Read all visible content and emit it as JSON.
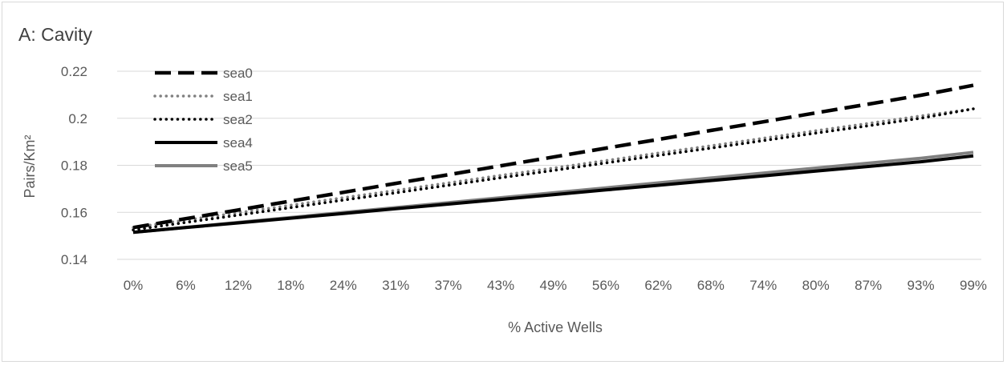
{
  "chart_data": {
    "type": "line",
    "title": "A: Cavity",
    "xlabel": "% Active Wells",
    "ylabel": "Pairs/Km²",
    "categories": [
      "0%",
      "6%",
      "12%",
      "18%",
      "24%",
      "31%",
      "37%",
      "43%",
      "49%",
      "56%",
      "62%",
      "68%",
      "74%",
      "80%",
      "87%",
      "93%",
      "99%"
    ],
    "yticks": [
      "0.14",
      "0.16",
      "0.18",
      "0.2",
      "0.22"
    ],
    "ylim": [
      0.14,
      0.22
    ],
    "grid": true,
    "legend_position": "top-left",
    "series": [
      {
        "name": "sea0",
        "style": "long-dash",
        "color": "#000000",
        "values": [
          0.1535,
          0.1573,
          0.161,
          0.1648,
          0.1685,
          0.1723,
          0.176,
          0.1798,
          0.1835,
          0.1873,
          0.191,
          0.1948,
          0.1985,
          0.2023,
          0.206,
          0.2098,
          0.214
        ]
      },
      {
        "name": "sea1",
        "style": "dotted",
        "color": "#808080",
        "values": [
          0.1535,
          0.1567,
          0.1598,
          0.163,
          0.1662,
          0.1693,
          0.1725,
          0.1757,
          0.1788,
          0.182,
          0.1852,
          0.1883,
          0.1915,
          0.1947,
          0.1978,
          0.201,
          0.204
        ]
      },
      {
        "name": "sea2",
        "style": "dotted",
        "color": "#000000",
        "values": [
          0.1525,
          0.1557,
          0.1588,
          0.162,
          0.1652,
          0.1683,
          0.1715,
          0.1747,
          0.1778,
          0.181,
          0.1842,
          0.1873,
          0.1905,
          0.1937,
          0.1968,
          0.2,
          0.204
        ]
      },
      {
        "name": "sea4",
        "style": "solid",
        "color": "#000000",
        "values": [
          0.1515,
          0.1535,
          0.1555,
          0.1575,
          0.1595,
          0.1615,
          0.1635,
          0.1655,
          0.1675,
          0.1695,
          0.1715,
          0.1735,
          0.1755,
          0.1775,
          0.1795,
          0.1815,
          0.184
        ]
      },
      {
        "name": "sea5",
        "style": "solid",
        "color": "#808080",
        "values": [
          0.1515,
          0.1536,
          0.1557,
          0.1578,
          0.1599,
          0.162,
          0.1641,
          0.1662,
          0.1683,
          0.1704,
          0.1725,
          0.1746,
          0.1767,
          0.1788,
          0.1809,
          0.183,
          0.1855
        ]
      }
    ]
  }
}
